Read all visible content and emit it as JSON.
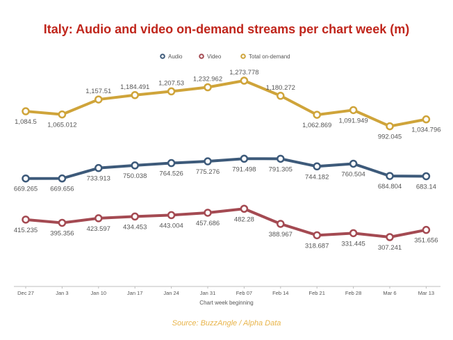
{
  "chart_data": {
    "type": "line",
    "title": "Italy: Audio and video on-demand streams per chart week (m)",
    "xlabel": "Chart week beginning",
    "ylabel": "",
    "source": "Source: BuzzAngle / Alpha Data",
    "legend_position": "top",
    "grid": false,
    "categories": [
      "Dec 27",
      "Jan 3",
      "Jan 10",
      "Jan 17",
      "Jan 24",
      "Jan 31",
      "Feb 07",
      "Feb 14",
      "Feb 21",
      "Feb 28",
      "Mar 6",
      "Mar 13"
    ],
    "series": [
      {
        "name": "Audio",
        "color": "#3d5a7a",
        "values": [
          669.265,
          669.656,
          733.913,
          750.038,
          764.526,
          775.276,
          791.498,
          791.305,
          744.182,
          760.504,
          684.804,
          683.14
        ],
        "labels": [
          "669.265",
          "669.656",
          "733.913",
          "750.038",
          "764.526",
          "775.276",
          "791.498",
          "791.305",
          "744.182",
          "760.504",
          "684.804",
          "683.14"
        ]
      },
      {
        "name": "Video",
        "color": "#a44a52",
        "values": [
          415.235,
          395.356,
          423.597,
          434.453,
          443.004,
          457.686,
          482.28,
          388.967,
          318.687,
          331.445,
          307.241,
          351.656
        ],
        "labels": [
          "415.235",
          "395.356",
          "423.597",
          "434.453",
          "443.004",
          "457.686",
          "482.28",
          "388.967",
          "318.687",
          "331.445",
          "307.241",
          "351.656"
        ]
      },
      {
        "name": "Total on-demand",
        "color": "#cfa43a",
        "values": [
          1084.5,
          1065.012,
          1157.51,
          1184.491,
          1207.53,
          1232.962,
          1273.778,
          1180.272,
          1062.869,
          1091.949,
          992.045,
          1034.796
        ],
        "labels": [
          "1,084.5",
          "1,065.012",
          "1,157.51",
          "1,184.491",
          "1,207.53",
          "1,232.962",
          "1,273.778",
          "1,180.272",
          "1,062.869",
          "1,091.949",
          "992.045",
          "1,034.796"
        ]
      }
    ],
    "title_color": "#c0261c",
    "source_color": "#e8b44a"
  }
}
